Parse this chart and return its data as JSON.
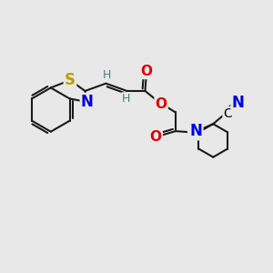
{
  "background_color": "#e8e8e8",
  "atom_colors": {
    "S": "#b8a000",
    "N": "#0000dd",
    "O": "#dd0000",
    "C": "#000000",
    "H": "#4a8080",
    "CN_N": "#0000dd"
  },
  "bond_color": "#1a1a1a",
  "bond_width": 1.5,
  "font_size_heavy": 11,
  "font_size_H": 9
}
